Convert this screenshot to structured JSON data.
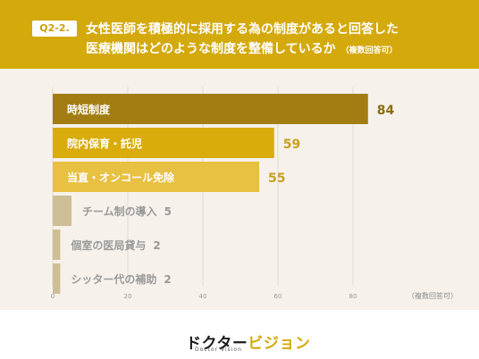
{
  "header": {
    "badge": "Q2-2.",
    "title_line1": "女性医師を積極的に採用する為の制度があると回答した",
    "title_line2": "医療機関はどのような制度を整備しているか",
    "title_note": "（複数回答可）"
  },
  "chart_data": {
    "type": "bar",
    "orientation": "horizontal",
    "categories": [
      "時短制度",
      "院内保育・託児",
      "当直・オンコール免除",
      "チーム制の導入",
      "個室の医局貸与",
      "シッター代の補助"
    ],
    "values": [
      84,
      59,
      55,
      5,
      2,
      2
    ],
    "xlim": [
      0,
      100
    ],
    "xticks": [
      "0",
      "20",
      "40",
      "60",
      "80"
    ],
    "xtick_values": [
      0,
      20,
      40,
      60,
      80
    ],
    "xlabel": "（複数回答可）",
    "bar_colors": [
      "#a27e12",
      "#d9ac0c",
      "#e8c042",
      "#cdbe95",
      "#cdbe95",
      "#cdbe95"
    ],
    "grid": true
  },
  "footer": {
    "logo_part1": "ドクター",
    "logo_part2": "ビジョン",
    "logo_sub": "Doctor Vision"
  }
}
